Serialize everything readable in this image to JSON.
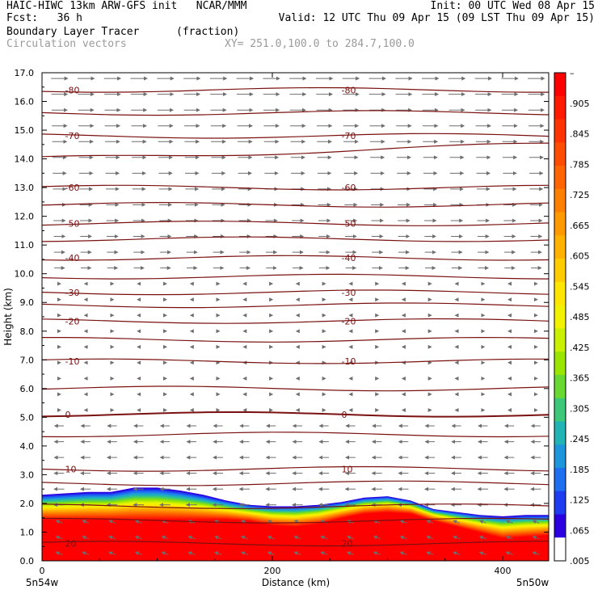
{
  "header": {
    "line1_left": "HAIC-HIWC 13km ARW-GFS init   NCAR/MMM",
    "line1_right": "Init: 00 UTC Wed 08 Apr 15",
    "line2_left": "Fcst:   36 h",
    "line2_right": "Valid: 12 UTC Thu 09 Apr 15 (09 LST Thu 09 Apr 15)",
    "line3_left": "Boundary Layer Tracer",
    "line3_mid": "(fraction)",
    "line4_left": "Circulation vectors",
    "line4_mid": "XY= 251.0,100.0 to 284.7,100.0"
  },
  "chart_data": {
    "type": "heatmap",
    "xlabel": "Distance (km)",
    "ylabel": "Height (km)",
    "xlim": [
      0,
      440
    ],
    "ylim": [
      0,
      17
    ],
    "x_ticks": [
      "0",
      "200",
      "400"
    ],
    "x_tick_values": [
      0,
      200,
      400
    ],
    "y_ticks": [
      "0.0",
      "1.0",
      "2.0",
      "3.0",
      "4.0",
      "5.0",
      "6.0",
      "7.0",
      "8.0",
      "9.0",
      "10.0",
      "11.0",
      "12.0",
      "13.0",
      "14.0",
      "15.0",
      "16.0",
      "17.0"
    ],
    "x_endpoint_labels": {
      "left": "5n54w",
      "right": "5n50w"
    },
    "colorbar": {
      "labels": [
        "–",
        ".905",
        ".845",
        ".785",
        ".725",
        ".665",
        ".605",
        ".545",
        ".485",
        ".425",
        ".365",
        ".305",
        ".245",
        ".185",
        ".125",
        ".065",
        ".005"
      ],
      "colors": [
        "#ff0000",
        "#ff1a00",
        "#ff3300",
        "#ff4d00",
        "#ff6600",
        "#ff8000",
        "#ff9900",
        "#ffb300",
        "#ffcc00",
        "#ffe600",
        "#f2f200",
        "#c8f000",
        "#9be600",
        "#6ad832",
        "#3cc878",
        "#22b4b4",
        "#1e96dc",
        "#1e6ef0",
        "#1e3cf0",
        "#2a00e0",
        "#ffffff"
      ]
    },
    "tracer_profile": {
      "x": [
        0,
        20,
        40,
        60,
        80,
        100,
        120,
        140,
        160,
        180,
        200,
        220,
        240,
        260,
        280,
        300,
        320,
        340,
        360,
        380,
        400,
        420,
        440
      ],
      "full_top_km": [
        1.45,
        1.45,
        1.45,
        1.45,
        1.45,
        1.45,
        1.45,
        1.45,
        1.45,
        1.4,
        1.25,
        1.2,
        1.3,
        1.5,
        1.65,
        1.7,
        1.65,
        1.4,
        1.2,
        1.0,
        0.8,
        0.85,
        0.9
      ],
      "tracer_top_km": [
        2.3,
        2.35,
        2.4,
        2.4,
        2.55,
        2.55,
        2.45,
        2.3,
        2.1,
        1.95,
        1.9,
        1.9,
        1.95,
        2.05,
        2.2,
        2.25,
        2.1,
        1.8,
        1.7,
        1.6,
        1.55,
        1.6,
        1.6
      ]
    },
    "isotherms": [
      {
        "label": "-80",
        "y_km": 16.4
      },
      {
        "label": "-70",
        "y_km": 14.8
      },
      {
        "label": "-60",
        "y_km": 13.0
      },
      {
        "label": "-50",
        "y_km": 11.75
      },
      {
        "label": "-40",
        "y_km": 10.55
      },
      {
        "label": "-30",
        "y_km": 9.35
      },
      {
        "label": "-20",
        "y_km": 8.35
      },
      {
        "label": "-10",
        "y_km": 6.95
      },
      {
        "label": "0",
        "y_km": 5.1
      },
      {
        "label": "10",
        "y_km": 3.2
      },
      {
        "label": "20",
        "y_km": 0.6
      }
    ],
    "unlabeled_isotherms_km": [
      15.6,
      14.0,
      12.4,
      11.2,
      9.9,
      8.9,
      7.7,
      6.0,
      4.4,
      2.7,
      1.9,
      1.4
    ],
    "wind_regimes": [
      {
        "from_km": 9.8,
        "to_km": 17.0,
        "direction": "east"
      },
      {
        "from_km": 5.2,
        "to_km": 9.8,
        "direction": "calm"
      },
      {
        "from_km": 0.0,
        "to_km": 5.2,
        "direction": "west"
      }
    ]
  }
}
